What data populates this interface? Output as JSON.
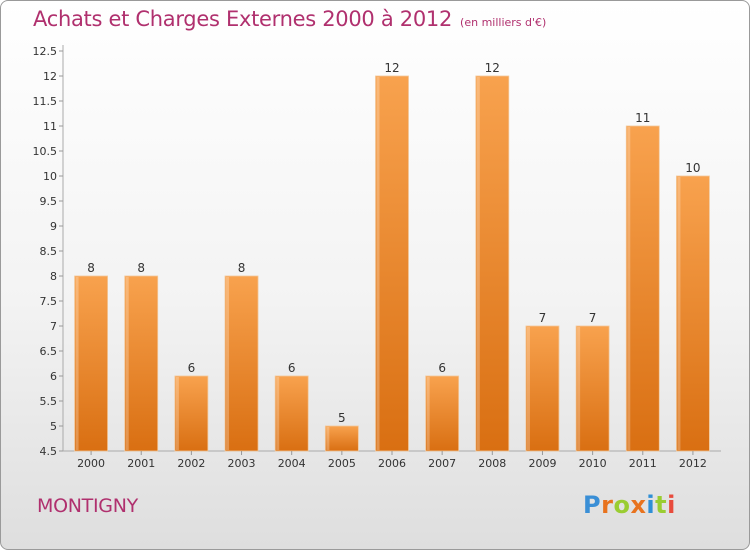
{
  "header": {
    "title": "Achats et Charges Externes 2000 à 2012",
    "subtitle": "(en milliers d'€)"
  },
  "footer": {
    "location": "MONTIGNY",
    "logo": "Proxiti"
  },
  "colors": {
    "bar_top": "#f8a24e",
    "bar_bottom": "#d96f12",
    "title": "#b0306e",
    "logo_letters": [
      "#3a8fd6",
      "#e8731e",
      "#9acd32",
      "#e8731e",
      "#2f8fd6",
      "#9acd32",
      "#e84b3c"
    ]
  },
  "chart_data": {
    "type": "bar",
    "title": "Achats et Charges Externes 2000 à 2012",
    "subtitle": "(en milliers d'€)",
    "xlabel": "",
    "ylabel": "",
    "categories": [
      "2000",
      "2001",
      "2002",
      "2003",
      "2004",
      "2005",
      "2006",
      "2007",
      "2008",
      "2009",
      "2010",
      "2011",
      "2012"
    ],
    "values": [
      8,
      8,
      6,
      8,
      6,
      5,
      12,
      6,
      12,
      7,
      7,
      11,
      10
    ],
    "ylim": [
      4.5,
      12.5
    ],
    "yticks": [
      "4.5",
      "5",
      "5.5",
      "6",
      "6.5",
      "7",
      "7.5",
      "8",
      "8.5",
      "9",
      "9.5",
      "10",
      "10.5",
      "11",
      "11.5",
      "12",
      "12.5"
    ],
    "grid": false,
    "legend": "none"
  }
}
